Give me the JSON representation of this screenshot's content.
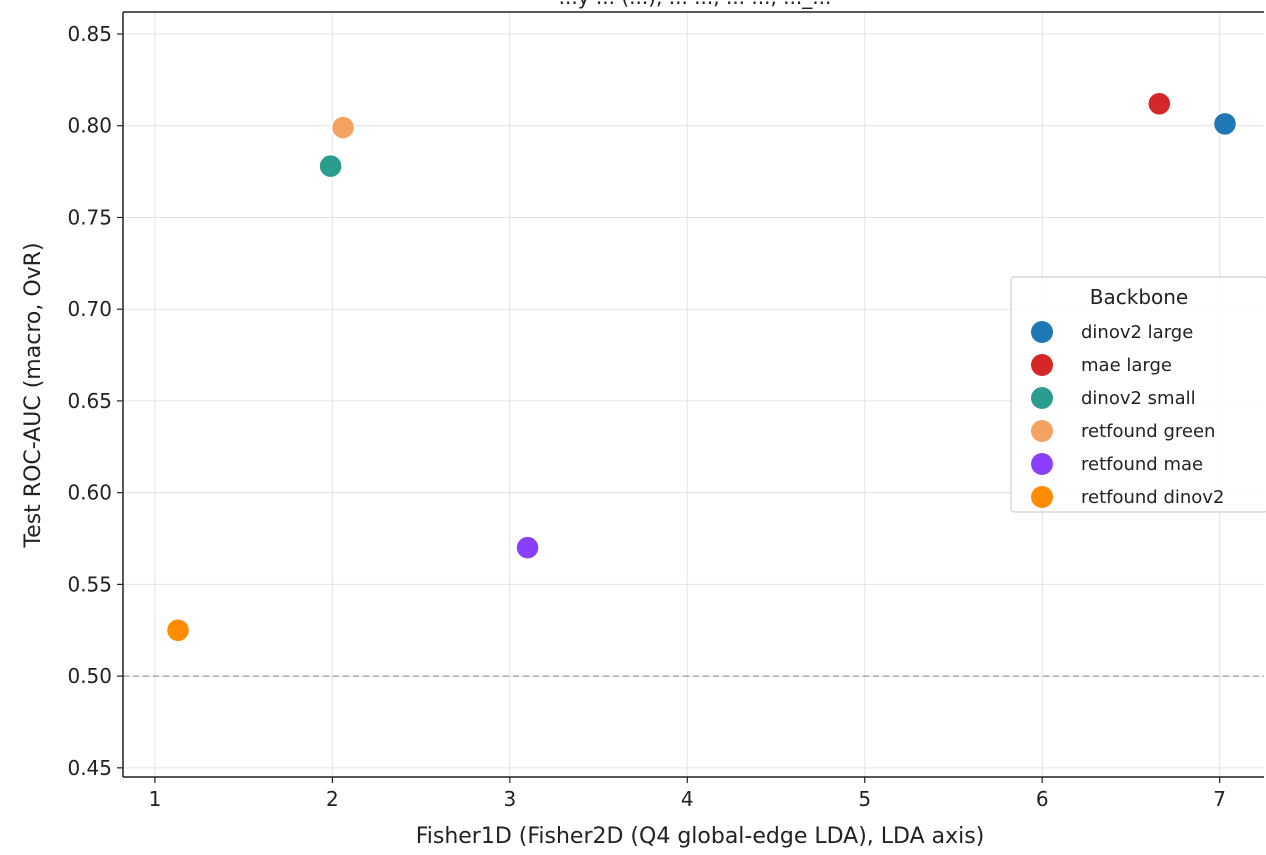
{
  "chart_data": {
    "type": "scatter",
    "title": "...y ... (...), ... ..., ... ..., ..._...",
    "xlabel": "Fisher1D (Fisher2D (Q4 global-edge LDA), LDA axis)",
    "ylabel": "Test ROC-AUC (macro, OvR)",
    "xlim": [
      0.82,
      7.25
    ],
    "ylim": [
      0.445,
      0.862
    ],
    "xticks": [
      1,
      2,
      3,
      4,
      5,
      6,
      7
    ],
    "yticks": [
      0.45,
      0.5,
      0.55,
      0.6,
      0.65,
      0.7,
      0.75,
      0.8,
      0.85
    ],
    "xtick_labels": [
      "1",
      "2",
      "3",
      "4",
      "5",
      "6",
      "7"
    ],
    "ytick_labels": [
      "0.45",
      "0.50",
      "0.55",
      "0.60",
      "0.65",
      "0.70",
      "0.75",
      "0.80",
      "0.85"
    ],
    "grid": true,
    "reference_line": {
      "y": 0.5,
      "style": "dashed",
      "color": "#aaaaaa"
    },
    "legend": {
      "title": "Backbone",
      "position": "right"
    },
    "series": [
      {
        "name": "dinov2 large",
        "color": "#1f77b4",
        "x": [
          7.03
        ],
        "y": [
          0.801
        ]
      },
      {
        "name": "mae large",
        "color": "#d62728",
        "x": [
          6.66
        ],
        "y": [
          0.812
        ]
      },
      {
        "name": "dinov2 small",
        "color": "#2a9d8f",
        "x": [
          1.99
        ],
        "y": [
          0.778
        ]
      },
      {
        "name": "retfound green",
        "color": "#f4a261",
        "x": [
          2.06
        ],
        "y": [
          0.799
        ]
      },
      {
        "name": "retfound mae",
        "color": "#8a3ffc",
        "x": [
          3.1
        ],
        "y": [
          0.57
        ]
      },
      {
        "name": "retfound dinov2",
        "color": "#ff8c00",
        "x": [
          1.13
        ],
        "y": [
          0.525
        ]
      }
    ]
  }
}
